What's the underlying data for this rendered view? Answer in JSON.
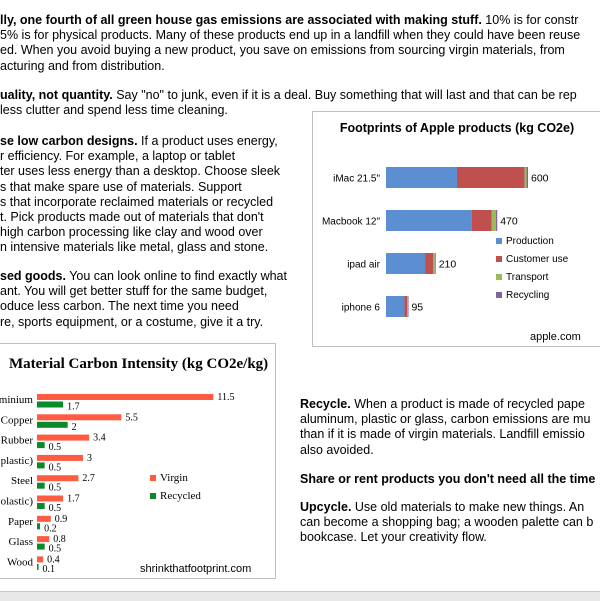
{
  "paragraphs": {
    "intro": {
      "heading": "lly, one fourth of all green house gas emissions are associated with making stuff.",
      "line1_tail": " 10% is for constr",
      "line2": "5% is for physical products.  Many of these products end up in a landfill when they could have been reuse",
      "line3": "ed.  When you avoid buying a new product, you save on emissions from sourcing virgin materials, from",
      "line4": "acturing and from distribution."
    },
    "quality": {
      "heading": "uality, not quantity.",
      "line1_tail": "  Say \"no\" to junk, even if it is a deal.  Buy something that will last and that can be rep",
      "line2": "less clutter and spend less time cleaning."
    },
    "low_carbon": {
      "heading": "se low carbon designs.",
      "line1_tail": "  If a product uses energy,",
      "lines": [
        "r efficiency.  For example, a laptop or tablet",
        "ter uses less energy than a desktop.  Choose sleek",
        "s that make spare use of materials.  Support",
        "s that incorporate reclaimed materials or recycled",
        "t.  Pick products made out of materials that don't",
        "high carbon processing like clay and wood over",
        "n intensive materials like metal, glass and stone."
      ]
    },
    "used_goods": {
      "heading": "sed goods.",
      "line1_tail": "  You can look online to find exactly what",
      "lines": [
        "ant.  You will get better stuff for the same budget,",
        "oduce less carbon.  The next time you need",
        "re, sports equipment, or a costume, give it a try."
      ]
    },
    "recycle": {
      "heading": "Recycle.",
      "line1_tail": "  When a product is made of recycled pape",
      "lines": [
        "aluminum, plastic or glass, carbon emissions are mu",
        "than if it is made of virgin materials.  Landfill emissio",
        "also avoided."
      ]
    },
    "share": {
      "heading": "Share or rent products you don't need all the time"
    },
    "upcycle": {
      "heading": "Upcycle.",
      "line1_tail": "  Use old materials to make new things.  An",
      "lines": [
        "can become a shopping bag; a wooden palette can b",
        "bookcase.  Let your creativity flow."
      ]
    }
  },
  "chart_data": [
    {
      "type": "bar",
      "orientation": "horizontal",
      "stacked": true,
      "title": "Footprints of Apple products (kg CO2e)",
      "categories": [
        "iMac 21.5\"",
        "Macbook 12\"",
        "ipad air",
        "iphone 6"
      ],
      "totals": [
        600,
        470,
        210,
        95
      ],
      "total_labels": [
        "600",
        "470",
        "210",
        "95"
      ],
      "series": [
        {
          "name": "Production",
          "color": "#5b8fd1",
          "values": [
            300,
            362,
            165,
            78
          ]
        },
        {
          "name": "Customer use",
          "color": "#c0504d",
          "values": [
            285,
            85,
            35,
            12
          ]
        },
        {
          "name": "Transport",
          "color": "#9bbb59",
          "values": [
            9,
            17,
            6,
            3
          ]
        },
        {
          "name": "Recycling",
          "color": "#8064a2",
          "values": [
            6,
            6,
            4,
            2
          ]
        }
      ],
      "xlim": [
        0,
        600
      ],
      "legend": "right",
      "source": "apple.com"
    },
    {
      "type": "bar",
      "orientation": "horizontal",
      "title": "Material Carbon Intensity (kg CO2e/kg)",
      "categories": [
        "minium",
        "Copper",
        "Rubber",
        "plastic)",
        "Steel",
        "olastic)",
        "Paper",
        "Glass",
        "Wood"
      ],
      "series": [
        {
          "name": "Virgin",
          "color": "#ff5b41",
          "values": [
            11.5,
            5.5,
            3.4,
            3,
            2.7,
            1.7,
            0.9,
            0.8,
            0.4
          ],
          "labels": [
            "11.5",
            "5.5",
            "3.4",
            "3",
            "2.7",
            "1.7",
            "0.9",
            "0.8",
            "0.4"
          ]
        },
        {
          "name": "Recycled",
          "color": "#0a8a2a",
          "values": [
            1.7,
            2,
            0.5,
            0.5,
            0.5,
            0.5,
            0.2,
            0.5,
            0.1
          ],
          "labels": [
            "1.7",
            "2",
            "0.5",
            "0.5",
            "0.5",
            "0.5",
            "0.2",
            "0.5",
            "0.1"
          ]
        }
      ],
      "xlim": [
        0,
        12
      ],
      "legend": "right",
      "source": "shrinkthatfootprint.com"
    }
  ]
}
